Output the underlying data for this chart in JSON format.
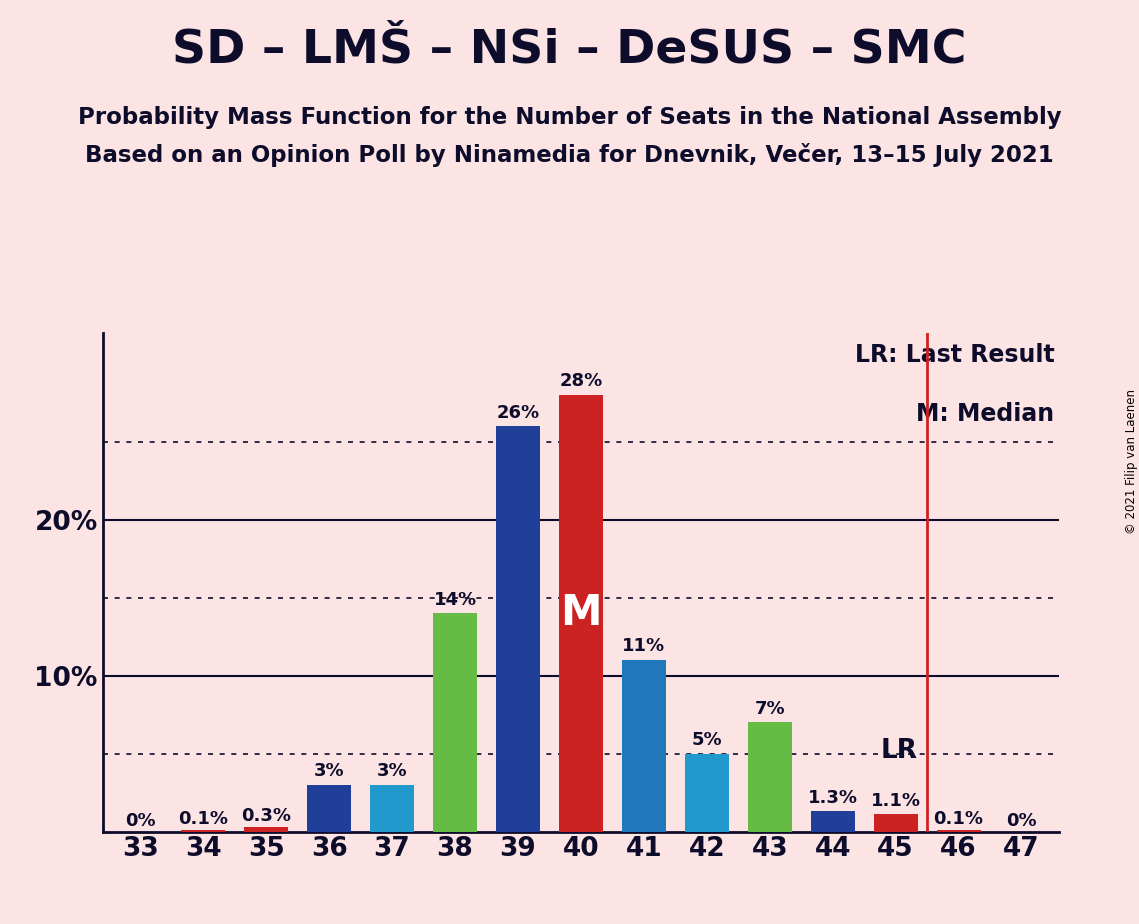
{
  "title": "SD – LMŠ – NSi – DeSUS – SMC",
  "subtitle1": "Probability Mass Function for the Number of Seats in the National Assembly",
  "subtitle2": "Based on an Opinion Poll by Ninamedia for Dnevnik, Večer, 13–15 July 2021",
  "copyright": "© 2021 Filip van Laenen",
  "seats": [
    33,
    34,
    35,
    36,
    37,
    38,
    39,
    40,
    41,
    42,
    43,
    44,
    45,
    46,
    47
  ],
  "probabilities": [
    0.0,
    0.1,
    0.3,
    3.0,
    3.0,
    14.0,
    26.0,
    28.0,
    11.0,
    5.0,
    7.0,
    1.3,
    1.1,
    0.1,
    0.0
  ],
  "bar_colors": [
    "#1f3f99",
    "#cc2222",
    "#cc2222",
    "#1f3f99",
    "#2299cc",
    "#66bb44",
    "#1f3f99",
    "#cc2222",
    "#2277bb",
    "#2299cc",
    "#66bb44",
    "#1f3f99",
    "#cc2222",
    "#cc2222",
    "#1f3f99"
  ],
  "labels": [
    "0%",
    "0.1%",
    "0.3%",
    "3%",
    "3%",
    "14%",
    "26%",
    "28%",
    "11%",
    "5%",
    "7%",
    "1.3%",
    "1.1%",
    "0.1%",
    "0%"
  ],
  "median_seat": 40,
  "last_result_x": 45.5,
  "lr_label": "LR",
  "median_label": "M",
  "dotted_lines": [
    5.0,
    15.0,
    25.0
  ],
  "solid_lines": [
    10.0,
    20.0
  ],
  "background_color": "#fce4e4",
  "lr_line_color": "#cc2222",
  "legend_lr": "LR: Last Result",
  "legend_m": "M: Median",
  "bar_width": 0.7,
  "ylim": [
    0,
    32
  ],
  "xlim": [
    32.4,
    47.6
  ],
  "text_color": "#0d0d2b",
  "solid_line_color": "#0d0d2b",
  "dotted_line_color": "#0d0d2b"
}
